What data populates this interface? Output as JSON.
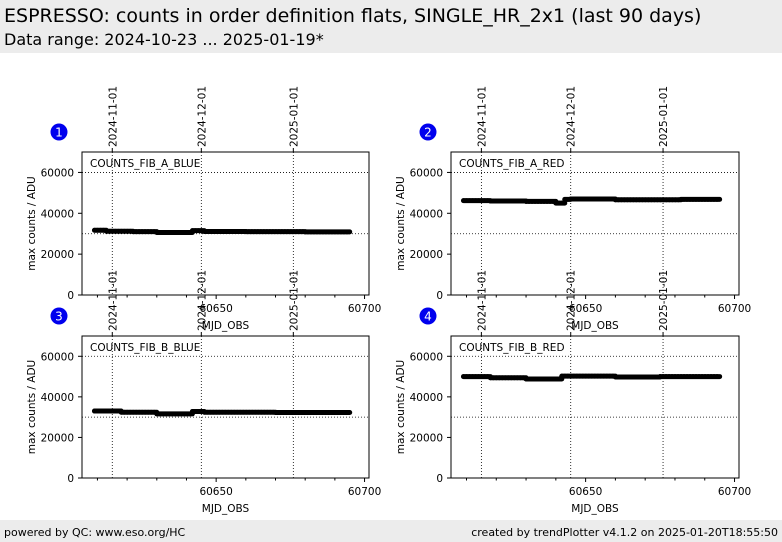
{
  "header": {
    "title": "ESPRESSO: counts in order definition flats, SINGLE_HR_2x1 (last 90 days)",
    "subtitle": "Data range: 2024-10-23 ... 2025-01-19*"
  },
  "footer": {
    "left": "powered by QC: www.eso.org/HC",
    "right": "created by trendPlotter v4.1.2 on 2025-01-20T18:55:50"
  },
  "chart_data": [
    {
      "type": "scatter",
      "panel": "1",
      "label": "COUNTS_FIB_A_BLUE",
      "xlabel": "MJD_OBS",
      "ylabel": "max counts / ADU",
      "xlim": [
        60604.8,
        60701.5
      ],
      "ylim": [
        0,
        70000
      ],
      "xticks": [
        60650,
        60700
      ],
      "yticks": [
        0,
        20000,
        40000,
        60000
      ],
      "hlines": [
        30000,
        60000
      ],
      "date_ticks": [
        {
          "x": 60615,
          "label": "2024-11-01"
        },
        {
          "x": 60645,
          "label": "2024-12-01"
        },
        {
          "x": 60676,
          "label": "2025-01-01"
        }
      ],
      "series": [
        {
          "color": "#000000",
          "segments": [
            {
              "x0": 60609,
              "x1": 60613,
              "y": 31700
            },
            {
              "x0": 60613,
              "x1": 60622,
              "y": 31200
            },
            {
              "x0": 60622,
              "x1": 60630,
              "y": 31000
            },
            {
              "x0": 60630,
              "x1": 60642,
              "y": 30600
            },
            {
              "x0": 60642,
              "x1": 60646,
              "y": 31500
            },
            {
              "x0": 60646,
              "x1": 60660,
              "y": 31100
            },
            {
              "x0": 60660,
              "x1": 60680,
              "y": 31000
            },
            {
              "x0": 60680,
              "x1": 60695,
              "y": 30900
            }
          ]
        }
      ]
    },
    {
      "type": "scatter",
      "panel": "2",
      "label": "COUNTS_FIB_A_RED",
      "xlabel": "MJD_OBS",
      "ylabel": "max counts / ADU",
      "xlim": [
        60604.8,
        60701.5
      ],
      "ylim": [
        0,
        70000
      ],
      "xticks": [
        60650,
        60700
      ],
      "yticks": [
        0,
        20000,
        40000,
        60000
      ],
      "hlines": [
        30000,
        60000
      ],
      "date_ticks": [
        {
          "x": 60615,
          "label": "2024-11-01"
        },
        {
          "x": 60645,
          "label": "2024-12-01"
        },
        {
          "x": 60676,
          "label": "2025-01-01"
        }
      ],
      "series": [
        {
          "color": "#000000",
          "segments": [
            {
              "x0": 60609,
              "x1": 60618,
              "y": 46200
            },
            {
              "x0": 60618,
              "x1": 60630,
              "y": 46000
            },
            {
              "x0": 60630,
              "x1": 60640,
              "y": 45800
            },
            {
              "x0": 60640,
              "x1": 60643,
              "y": 45000
            },
            {
              "x0": 60643,
              "x1": 60645,
              "y": 46800
            },
            {
              "x0": 60645,
              "x1": 60660,
              "y": 47000
            },
            {
              "x0": 60660,
              "x1": 60682,
              "y": 46600
            },
            {
              "x0": 60682,
              "x1": 60695,
              "y": 46800
            }
          ]
        }
      ]
    },
    {
      "type": "scatter",
      "panel": "3",
      "label": "COUNTS_FIB_B_BLUE",
      "xlabel": "MJD_OBS",
      "ylabel": "max counts / ADU",
      "xlim": [
        60604.8,
        60701.5
      ],
      "ylim": [
        0,
        70000
      ],
      "xticks": [
        60650,
        60700
      ],
      "yticks": [
        0,
        20000,
        40000,
        60000
      ],
      "hlines": [
        30000,
        60000
      ],
      "date_ticks": [
        {
          "x": 60615,
          "label": "2024-11-01"
        },
        {
          "x": 60645,
          "label": "2024-12-01"
        },
        {
          "x": 60676,
          "label": "2025-01-01"
        }
      ],
      "series": [
        {
          "color": "#000000",
          "segments": [
            {
              "x0": 60609,
              "x1": 60618,
              "y": 33000
            },
            {
              "x0": 60618,
              "x1": 60630,
              "y": 32400
            },
            {
              "x0": 60630,
              "x1": 60642,
              "y": 31600
            },
            {
              "x0": 60642,
              "x1": 60646,
              "y": 32800
            },
            {
              "x0": 60646,
              "x1": 60670,
              "y": 32400
            },
            {
              "x0": 60670,
              "x1": 60695,
              "y": 32300
            }
          ]
        }
      ]
    },
    {
      "type": "scatter",
      "panel": "4",
      "label": "COUNTS_FIB_B_RED",
      "xlabel": "MJD_OBS",
      "ylabel": "max counts / ADU",
      "xlim": [
        60604.8,
        60701.5
      ],
      "ylim": [
        0,
        70000
      ],
      "xticks": [
        60650,
        60700
      ],
      "yticks": [
        0,
        20000,
        40000,
        60000
      ],
      "hlines": [
        30000,
        60000
      ],
      "date_ticks": [
        {
          "x": 60615,
          "label": "2024-11-01"
        },
        {
          "x": 60645,
          "label": "2024-12-01"
        },
        {
          "x": 60676,
          "label": "2025-01-01"
        }
      ],
      "series": [
        {
          "color": "#000000",
          "segments": [
            {
              "x0": 60609,
              "x1": 60618,
              "y": 50000
            },
            {
              "x0": 60618,
              "x1": 60630,
              "y": 49400
            },
            {
              "x0": 60630,
              "x1": 60642,
              "y": 48800
            },
            {
              "x0": 60642,
              "x1": 60660,
              "y": 50200
            },
            {
              "x0": 60660,
              "x1": 60675,
              "y": 49800
            },
            {
              "x0": 60675,
              "x1": 60695,
              "y": 50000
            }
          ]
        }
      ]
    }
  ],
  "colors": {
    "badge": "#0000ee",
    "band": "#ececec"
  }
}
